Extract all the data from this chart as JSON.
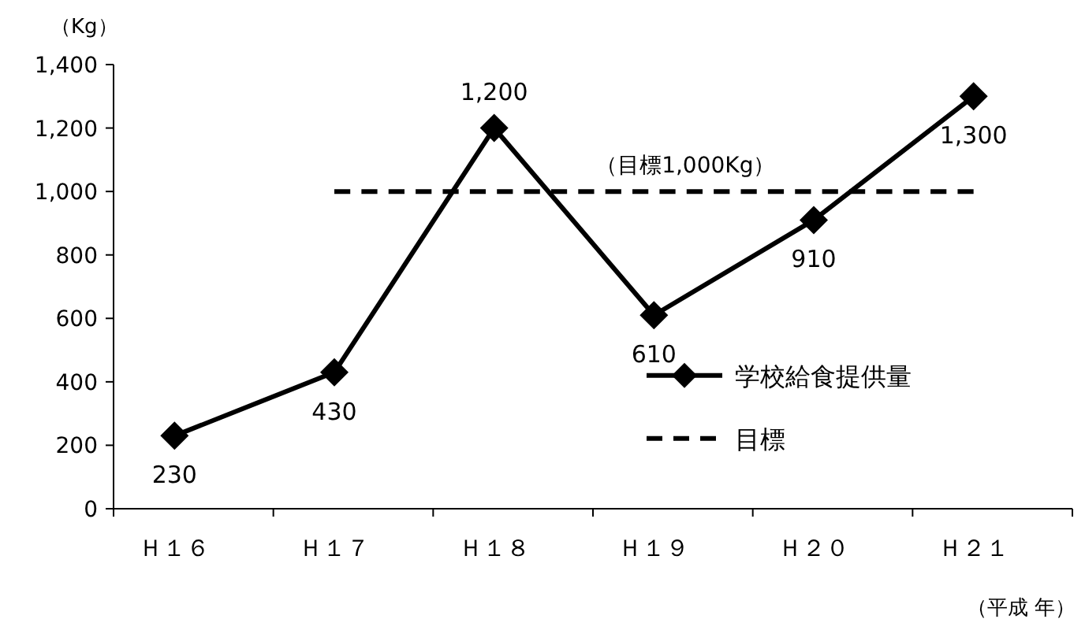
{
  "chart_data": {
    "type": "line",
    "ylabel": "（Kg）",
    "xlabel": "（平成 年）",
    "categories": [
      "Ｈ１６",
      "Ｈ１７",
      "Ｈ１８",
      "Ｈ１９",
      "Ｈ２０",
      "Ｈ２１"
    ],
    "ylim": [
      0,
      1400
    ],
    "yticks": [
      0,
      {
        "value": 200,
        "label": "200"
      },
      {
        "value": 400,
        "label": "400"
      },
      {
        "value": 600,
        "label": "600"
      },
      {
        "value": 800,
        "label": "800"
      },
      {
        "value": 1000,
        "label": "1,000"
      },
      {
        "value": 1200,
        "label": "1,200"
      },
      {
        "value": 1400,
        "label": "1,400"
      }
    ],
    "series": [
      {
        "name": "学校給食提供量",
        "color": "#000000",
        "marker": "diamond",
        "line_style": "solid",
        "values": [
          230,
          430,
          1200,
          610,
          910,
          1300
        ],
        "value_labels": [
          "230",
          "430",
          "1,200",
          "610",
          "910",
          "1,300"
        ]
      },
      {
        "name": "目標",
        "color": "#000000",
        "marker": "none",
        "line_style": "dashed",
        "values": [
          null,
          1000,
          1000,
          1000,
          1000,
          1000
        ]
      }
    ],
    "annotations": [
      {
        "text": "（目標1,000Kg）",
        "x": "Ｈ１９",
        "y": 1000
      }
    ],
    "legend": "right"
  }
}
